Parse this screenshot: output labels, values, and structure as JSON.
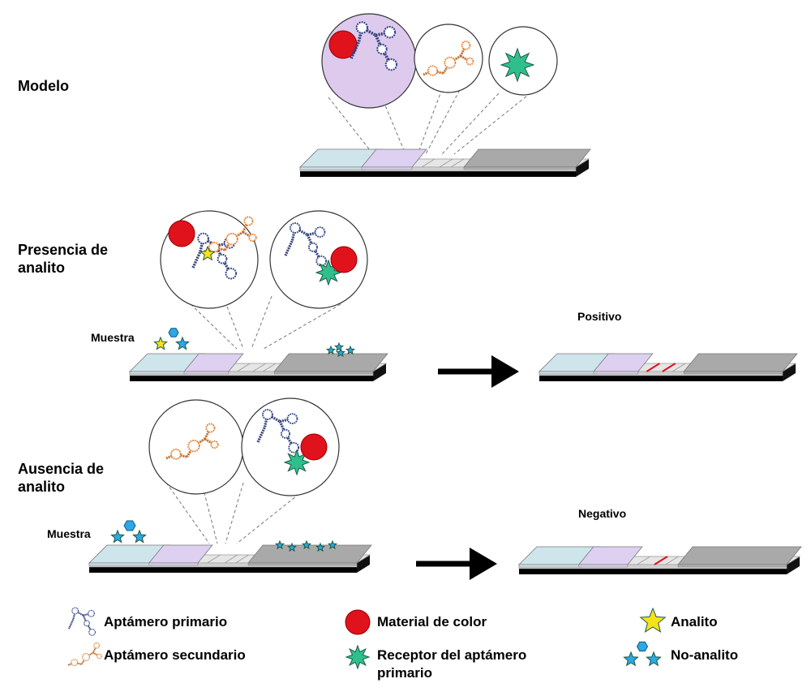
{
  "rows": {
    "model": "Modelo",
    "presence_line1": "Presencia de",
    "presence_line2": "analito",
    "absence_line1": "Ausencia de",
    "absence_line2": "analito"
  },
  "sample_label": "Muestra",
  "results": {
    "positive": "Positivo",
    "negative": "Negativo"
  },
  "legend": {
    "primary_aptamer": "Aptámero primario",
    "secondary_aptamer": "Aptámero secundario",
    "color_material": "Material de color",
    "receptor_line1": "Receptor del aptámero",
    "receptor_line2": "primario",
    "analyte": "Analito",
    "non_analyte": "No-analito"
  },
  "colors": {
    "color_material": "#e0121b",
    "receptor": "#2fbf8c",
    "analyte": "#f7e21a",
    "non_analyte": "#2aa9e6",
    "conjugate_pad": "#ddd0f0",
    "sample_pad": "#cfe5ec",
    "absorbent_pad": "#a9a9a9",
    "test_line": "#e0121b"
  }
}
